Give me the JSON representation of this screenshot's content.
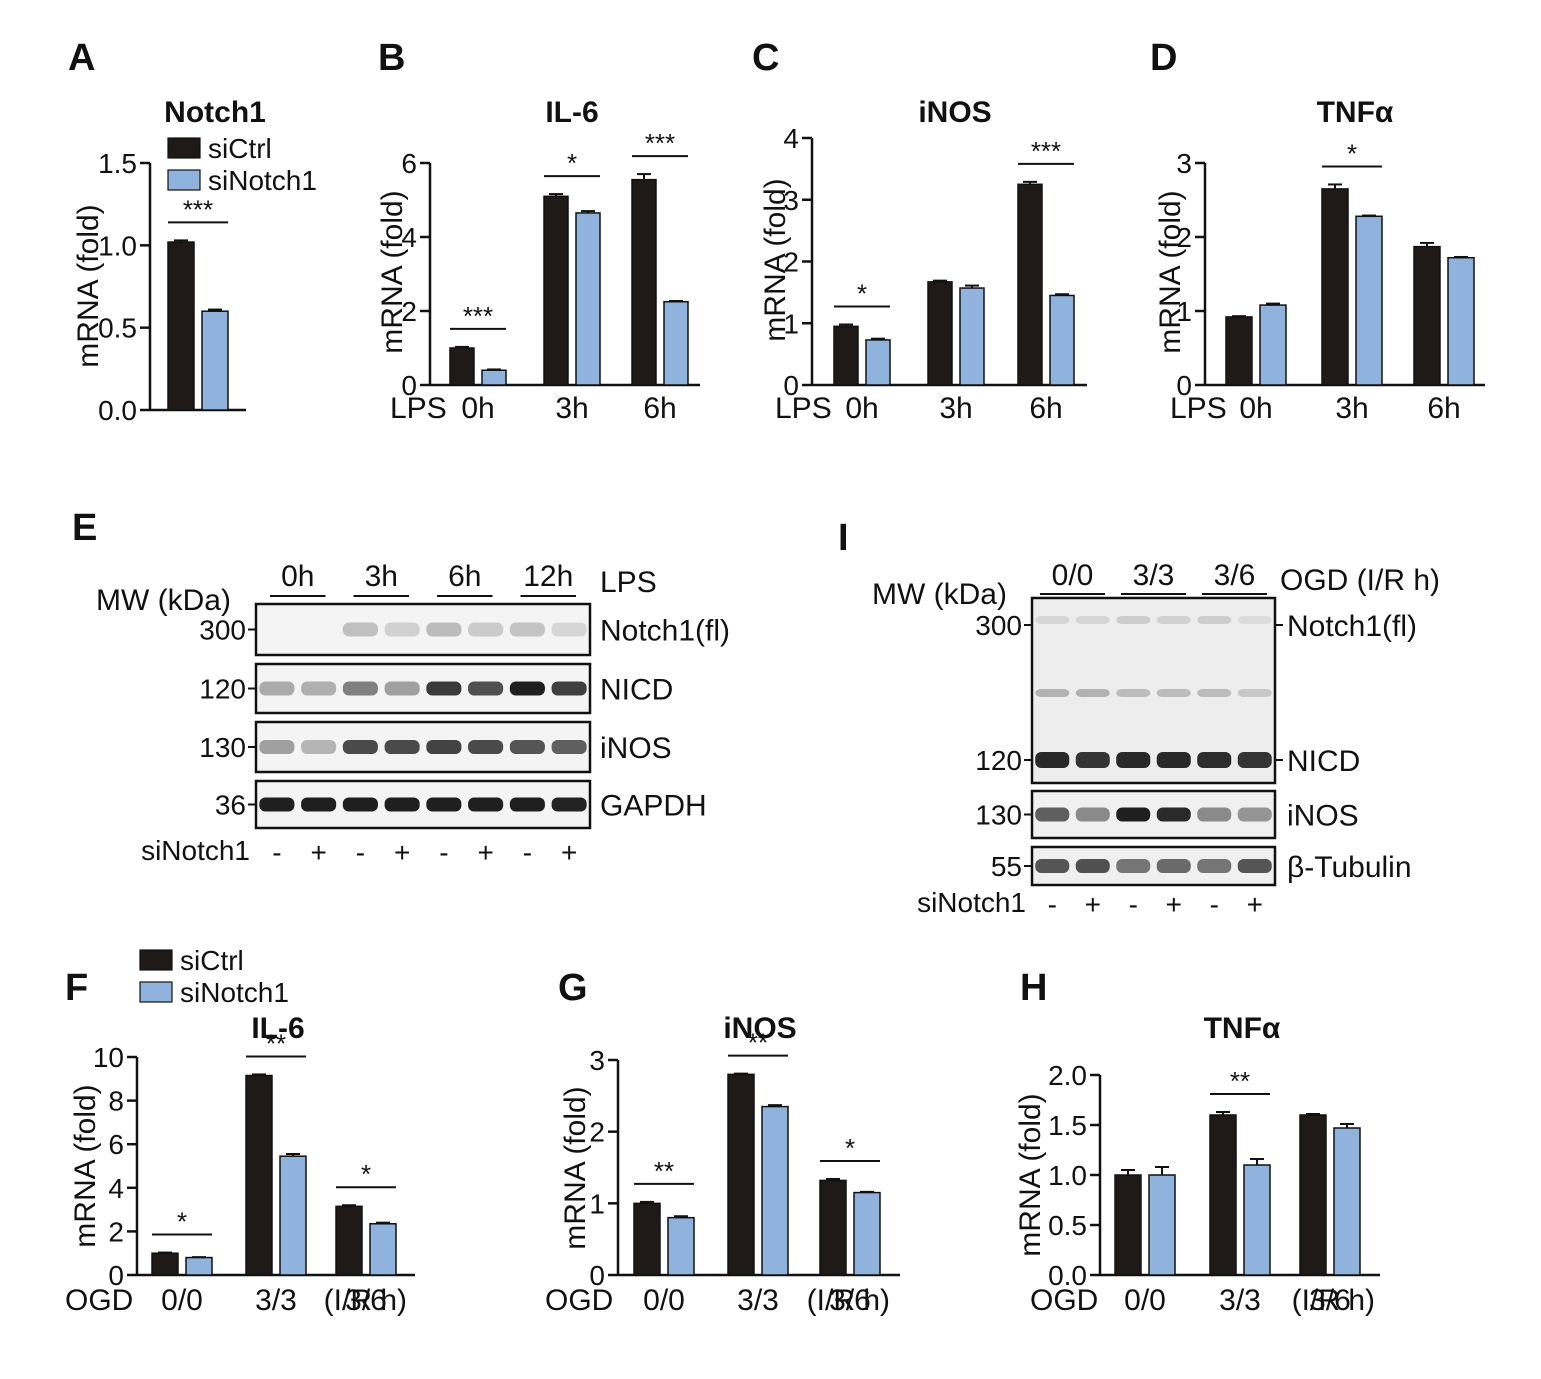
{
  "colors": {
    "siCtrl": "#1f1a17",
    "siNotch1": "#8fb3dd",
    "axis": "#111111"
  },
  "legend_top": {
    "items": [
      "siCtrl",
      "siNotch1"
    ]
  },
  "legend_bottom": {
    "items": [
      "siCtrl",
      "siNotch1"
    ]
  },
  "chart_data": [
    {
      "id": "A",
      "panel_label": "A",
      "type": "bar",
      "title": "Notch1",
      "ylabel": "mRNA (fold)",
      "ylim": [
        0,
        1.5
      ],
      "yticks": [
        "0.0",
        "0.5",
        "1.0",
        "1.5"
      ],
      "x_prefix": "",
      "categories": [
        ""
      ],
      "x_suffix": "",
      "series": [
        {
          "name": "siCtrl",
          "values": [
            1.02
          ],
          "errors": [
            0.01
          ]
        },
        {
          "name": "siNotch1",
          "values": [
            0.6
          ],
          "errors": [
            0.01
          ]
        }
      ],
      "significance": [
        {
          "category": 0,
          "label": "***"
        }
      ]
    },
    {
      "id": "B",
      "panel_label": "B",
      "type": "bar",
      "title": "IL-6",
      "ylabel": "mRNA (fold)",
      "ylim": [
        0,
        6
      ],
      "yticks": [
        "0",
        "2",
        "4",
        "6"
      ],
      "x_prefix": "LPS",
      "categories": [
        "0h",
        "3h",
        "6h"
      ],
      "x_suffix": "",
      "series": [
        {
          "name": "siCtrl",
          "values": [
            1.0,
            5.1,
            5.55
          ],
          "errors": [
            0.03,
            0.06,
            0.15
          ]
        },
        {
          "name": "siNotch1",
          "values": [
            0.4,
            4.65,
            2.25
          ],
          "errors": [
            0.02,
            0.05,
            0.02
          ]
        }
      ],
      "significance": [
        {
          "category": 0,
          "label": "***"
        },
        {
          "category": 1,
          "label": "*"
        },
        {
          "category": 2,
          "label": "***"
        }
      ]
    },
    {
      "id": "C",
      "panel_label": "C",
      "type": "bar",
      "title": "iNOS",
      "ylabel": "mRNA (fold)",
      "ylim": [
        0,
        4
      ],
      "yticks": [
        "0",
        "1",
        "2",
        "3",
        "4"
      ],
      "x_prefix": "LPS",
      "categories": [
        "0h",
        "3h",
        "6h"
      ],
      "x_suffix": "",
      "series": [
        {
          "name": "siCtrl",
          "values": [
            0.95,
            1.67,
            3.25
          ],
          "errors": [
            0.03,
            0.02,
            0.04
          ]
        },
        {
          "name": "siNotch1",
          "values": [
            0.73,
            1.57,
            1.45
          ],
          "errors": [
            0.02,
            0.04,
            0.02
          ]
        }
      ],
      "significance": [
        {
          "category": 0,
          "label": "*"
        },
        {
          "category": 2,
          "label": "***"
        }
      ]
    },
    {
      "id": "D",
      "panel_label": "D",
      "type": "bar",
      "title": "TNFα",
      "ylabel": "mRNA (fold)",
      "ylim": [
        0,
        3
      ],
      "yticks": [
        "0",
        "1",
        "2",
        "3"
      ],
      "x_prefix": "LPS",
      "categories": [
        "0h",
        "3h",
        "6h"
      ],
      "x_suffix": "",
      "series": [
        {
          "name": "siCtrl",
          "values": [
            0.92,
            2.65,
            1.87
          ],
          "errors": [
            0.01,
            0.06,
            0.05
          ]
        },
        {
          "name": "siNotch1",
          "values": [
            1.08,
            2.28,
            1.72
          ],
          "errors": [
            0.02,
            0.01,
            0.01
          ]
        }
      ],
      "significance": [
        {
          "category": 1,
          "label": "*"
        }
      ]
    },
    {
      "id": "F",
      "panel_label": "F",
      "type": "bar",
      "title": "IL-6",
      "ylabel": "mRNA (fold)",
      "ylim": [
        0,
        10
      ],
      "yticks": [
        "0",
        "2",
        "4",
        "6",
        "8",
        "10"
      ],
      "x_prefix": "OGD",
      "categories": [
        "0/0",
        "3/3",
        "3/6"
      ],
      "x_suffix": "(I/R h)",
      "series": [
        {
          "name": "siCtrl",
          "values": [
            1.0,
            9.15,
            3.15
          ],
          "errors": [
            0.03,
            0.05,
            0.05
          ]
        },
        {
          "name": "siNotch1",
          "values": [
            0.8,
            5.45,
            2.35
          ],
          "errors": [
            0.02,
            0.1,
            0.05
          ]
        }
      ],
      "significance": [
        {
          "category": 0,
          "label": "*"
        },
        {
          "category": 1,
          "label": "**"
        },
        {
          "category": 2,
          "label": "*"
        }
      ]
    },
    {
      "id": "G",
      "panel_label": "G",
      "type": "bar",
      "title": "iNOS",
      "ylabel": "mRNA (fold)",
      "ylim": [
        0,
        3
      ],
      "yticks": [
        "0",
        "1",
        "2",
        "3"
      ],
      "x_prefix": "OGD",
      "categories": [
        "0/0",
        "3/3",
        "3/6"
      ],
      "x_suffix": "(I/R h)",
      "series": [
        {
          "name": "siCtrl",
          "values": [
            1.0,
            2.8,
            1.32
          ],
          "errors": [
            0.02,
            0.01,
            0.02
          ]
        },
        {
          "name": "siNotch1",
          "values": [
            0.8,
            2.35,
            1.15
          ],
          "errors": [
            0.02,
            0.02,
            0.01
          ]
        }
      ],
      "significance": [
        {
          "category": 0,
          "label": "**"
        },
        {
          "category": 1,
          "label": "**"
        },
        {
          "category": 2,
          "label": "*"
        }
      ]
    },
    {
      "id": "H",
      "panel_label": "H",
      "type": "bar",
      "title": "TNFα",
      "ylabel": "mRNA (fold)",
      "ylim": [
        0,
        2.0
      ],
      "yticks": [
        "0.0",
        "0.5",
        "1.0",
        "1.5",
        "2.0"
      ],
      "x_prefix": "OGD",
      "categories": [
        "0/0",
        "3/3",
        "3/6"
      ],
      "x_suffix": "(I/R h)",
      "series": [
        {
          "name": "siCtrl",
          "values": [
            1.0,
            1.6,
            1.6
          ],
          "errors": [
            0.05,
            0.03,
            0.01
          ]
        },
        {
          "name": "siNotch1",
          "values": [
            1.0,
            1.1,
            1.47
          ],
          "errors": [
            0.08,
            0.06,
            0.04
          ]
        }
      ],
      "significance": [
        {
          "category": 1,
          "label": "**"
        }
      ]
    }
  ],
  "blot_e": {
    "panel_label": "E",
    "mw_header": "MW (kDa)",
    "treatment": "LPS",
    "time_groups": [
      "0h",
      "3h",
      "6h",
      "12h"
    ],
    "rows": [
      {
        "mw": "300",
        "name": "Notch1(fl)",
        "intensity": [
          0.0,
          0.0,
          0.2,
          0.12,
          0.22,
          0.15,
          0.18,
          0.1
        ]
      },
      {
        "mw": "120",
        "name": "NICD",
        "intensity": [
          0.3,
          0.28,
          0.5,
          0.35,
          0.82,
          0.72,
          0.95,
          0.8
        ]
      },
      {
        "mw": "130",
        "name": "iNOS",
        "intensity": [
          0.35,
          0.25,
          0.75,
          0.75,
          0.78,
          0.75,
          0.7,
          0.65
        ]
      },
      {
        "mw": "36",
        "name": "GAPDH",
        "intensity": [
          0.95,
          0.95,
          0.95,
          0.95,
          0.95,
          0.95,
          0.95,
          0.93
        ]
      }
    ],
    "si_label": "siNotch1",
    "lane_signs": [
      "-",
      "+",
      "-",
      "+",
      "-",
      "+",
      "-",
      "+"
    ]
  },
  "blot_i": {
    "panel_label": "I",
    "mw_header": "MW (kDa)",
    "treatment": "OGD (I/R h)",
    "time_groups": [
      "0/0",
      "3/3",
      "3/6"
    ],
    "big_rows": [
      {
        "mw": "300",
        "name": "Notch1(fl)"
      },
      {
        "mw": "120",
        "name": "NICD"
      }
    ],
    "notch_fl_intensity": [
      0.08,
      0.08,
      0.12,
      0.1,
      0.12,
      0.05
    ],
    "mid_band_intensity": [
      0.25,
      0.25,
      0.2,
      0.2,
      0.2,
      0.15
    ],
    "nicd_intensity": [
      0.9,
      0.85,
      0.9,
      0.9,
      0.88,
      0.85
    ],
    "rows": [
      {
        "mw": "130",
        "name": "iNOS",
        "intensity": [
          0.65,
          0.45,
          0.95,
          0.9,
          0.45,
          0.4
        ]
      },
      {
        "mw": "55",
        "name": "β-Tubulin",
        "intensity": [
          0.7,
          0.72,
          0.55,
          0.6,
          0.55,
          0.7
        ]
      }
    ],
    "si_label": "siNotch1",
    "lane_signs": [
      "-",
      "+",
      "-",
      "+",
      "-",
      "+"
    ]
  }
}
